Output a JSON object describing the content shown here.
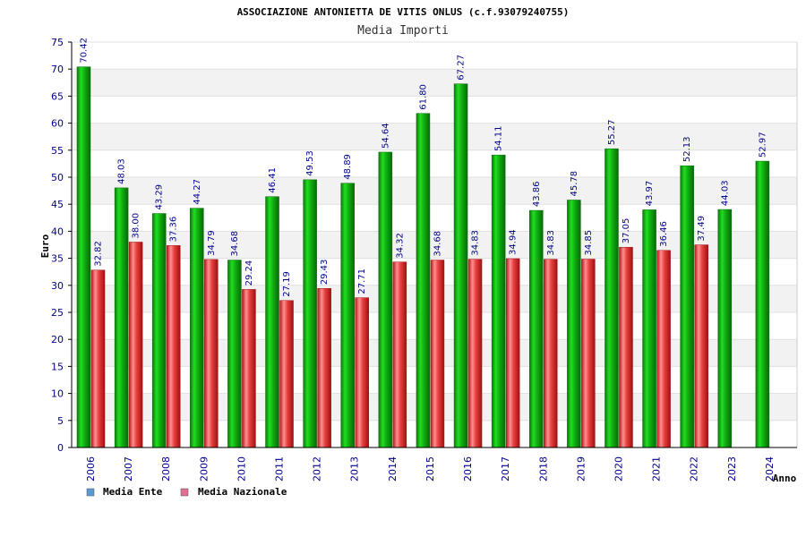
{
  "chart_data": {
    "type": "bar",
    "title": "ASSOCIAZIONE ANTONIETTA DE VITIS ONLUS (c.f.93079240755)",
    "subtitle": "Media Importi",
    "xlabel": "Anno",
    "ylabel": "Euro",
    "ylim": [
      0,
      75
    ],
    "ytick_step": 5,
    "grid": true,
    "legend_position": "bottom-left",
    "categories": [
      "2006",
      "2007",
      "2008",
      "2009",
      "2010",
      "2011",
      "2012",
      "2013",
      "2014",
      "2015",
      "2016",
      "2017",
      "2018",
      "2019",
      "2020",
      "2021",
      "2022",
      "2023",
      "2024"
    ],
    "series": [
      {
        "name": "Media Ente",
        "color": "#10b010",
        "legend_color": "#5b9bd5",
        "values": [
          70.42,
          48.03,
          43.29,
          44.27,
          34.68,
          46.41,
          49.53,
          48.89,
          54.64,
          61.8,
          67.27,
          54.11,
          43.86,
          45.78,
          55.27,
          43.97,
          52.13,
          44.03,
          52.97
        ],
        "labels": [
          "70.42",
          "48.03",
          "43.29",
          "44.27",
          "34.68",
          "46.41",
          "49.53",
          "48.89",
          "54.64",
          "61.80",
          "67.27",
          "54.11",
          "43.86",
          "45.78",
          "55.27",
          "43.97",
          "52.13",
          "44.03",
          "52.97"
        ]
      },
      {
        "name": "Media Nazionale",
        "color": "#e02020",
        "legend_color": "#e07090",
        "values": [
          32.82,
          38.0,
          37.36,
          34.79,
          29.24,
          27.19,
          29.43,
          27.71,
          34.32,
          34.68,
          34.83,
          34.94,
          34.83,
          34.85,
          37.05,
          36.46,
          37.49,
          null,
          null
        ],
        "labels": [
          "32.82",
          "38.00",
          "37.36",
          "34.79",
          "29.24",
          "27.19",
          "29.43",
          "27.71",
          "34.32",
          "34.68",
          "34.83",
          "34.94",
          "34.83",
          "34.85",
          "37.05",
          "36.46",
          "37.49",
          null,
          null
        ]
      }
    ]
  }
}
